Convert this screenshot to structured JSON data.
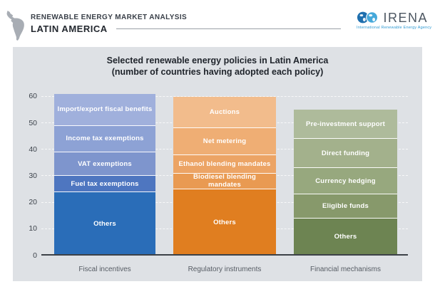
{
  "header": {
    "kicker": "RENEWABLE ENERGY MARKET ANALYSIS",
    "region": "LATIN AMERICA",
    "logo_text": "IRENA",
    "logo_tagline": "International Renewable Energy Agency",
    "icon": "latin-america-map-icon",
    "colors": {
      "logo_dark_blue": "#1e6fae",
      "logo_light_blue": "#45a8da",
      "map_gray": "#a8adb4"
    }
  },
  "chart_data": {
    "type": "bar",
    "stacked": true,
    "title": "Selected renewable energy policies in Latin America",
    "subtitle": "(number of countries having adopted each policy)",
    "ylim": [
      0,
      60
    ],
    "y_ticks": [
      0,
      10,
      20,
      30,
      40,
      50,
      60
    ],
    "grid": "horizontal white dashed lines behind bars",
    "legend": "none (labels printed inside segments)",
    "panel_background": "#dee1e5",
    "categories": [
      "Fiscal incentives",
      "Regulatory instruments",
      "Financial mechanisms"
    ],
    "bars": [
      {
        "category": "Fiscal incentives",
        "total": 61,
        "segments": [
          {
            "label": "Import/export fiscal benefits",
            "value": 12,
            "color": "#a0b0dc"
          },
          {
            "label": "Income tax exemptions",
            "value": 10,
            "color": "#8da2d5"
          },
          {
            "label": "VAT exemptions",
            "value": 9,
            "color": "#7e95cd"
          },
          {
            "label": "Fuel tax exemptions",
            "value": 6,
            "color": "#4e76c0"
          },
          {
            "label": "Others",
            "value": 24,
            "color": "#2a6db8"
          }
        ]
      },
      {
        "category": "Regulatory instruments",
        "total": 60,
        "segments": [
          {
            "label": "Auctions",
            "value": 12,
            "color": "#f2bc8c"
          },
          {
            "label": "Net metering",
            "value": 10,
            "color": "#efae74"
          },
          {
            "label": "Ethanol blending mandates",
            "value": 7,
            "color": "#eca465"
          },
          {
            "label": "Biodiesel blending mandates",
            "value": 6,
            "color": "#e99a52"
          },
          {
            "label": "Others",
            "value": 25,
            "color": "#e07e20"
          }
        ]
      },
      {
        "category": "Financial mechanisms",
        "total": 55,
        "segments": [
          {
            "label": "Pre-investment support",
            "value": 11,
            "color": "#aebb9b"
          },
          {
            "label": "Direct funding",
            "value": 11,
            "color": "#a3b18c"
          },
          {
            "label": "Currency hedging",
            "value": 10,
            "color": "#97a87e"
          },
          {
            "label": "Eligible funds",
            "value": 9,
            "color": "#87996b"
          },
          {
            "label": "Others",
            "value": 14,
            "color": "#6d8452"
          }
        ]
      }
    ]
  }
}
